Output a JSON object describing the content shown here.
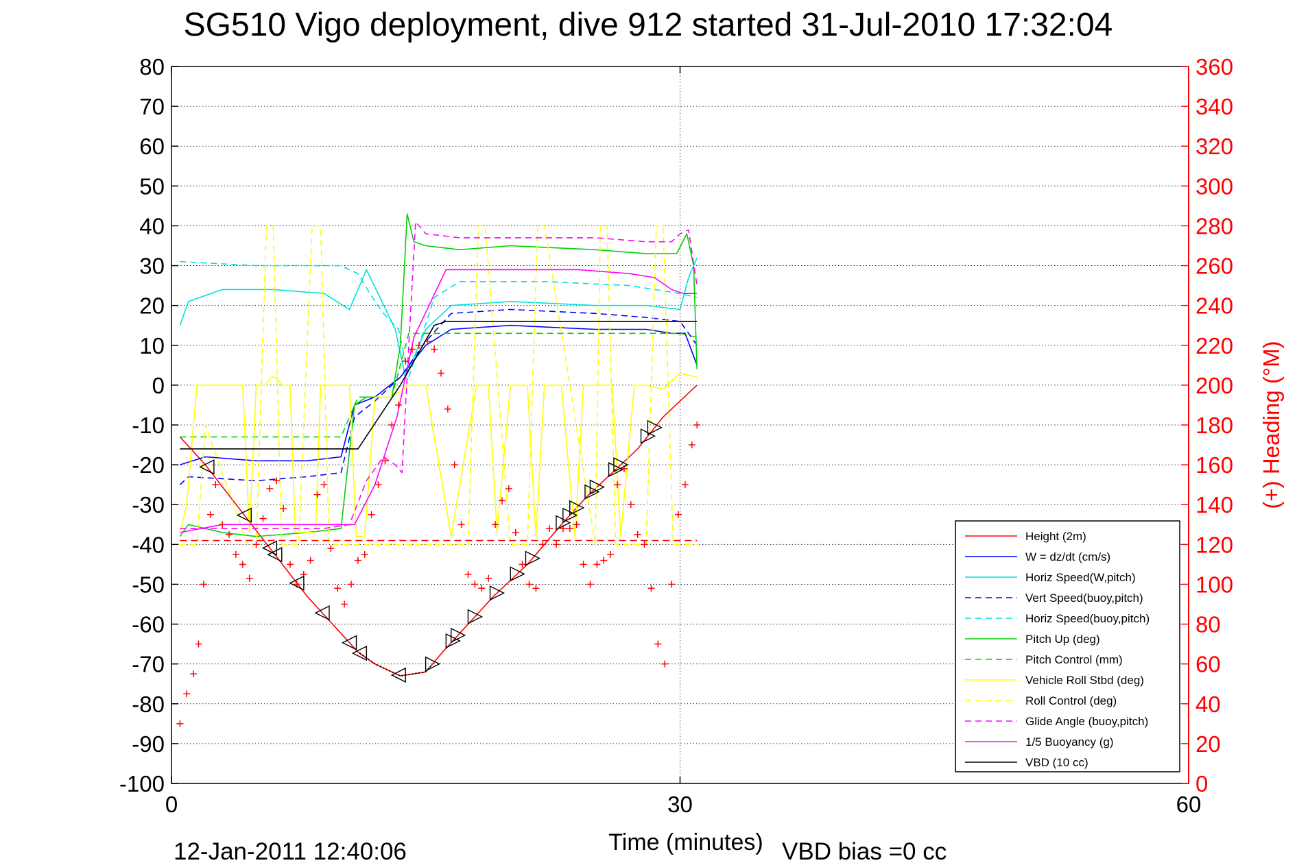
{
  "chart_data": {
    "type": "line",
    "title": "SG510 Vigo deployment, dive 912 started 31-Jul-2010 17:32:04",
    "xlabel": "Time (minutes)",
    "ylabel": "",
    "y2label": "(+) Heading (°M)",
    "xlim": [
      0,
      60
    ],
    "ylim": [
      -100,
      80
    ],
    "y2lim": [
      0,
      360
    ],
    "xticks": [
      "0",
      "30",
      "60"
    ],
    "yticks": [
      "80",
      "70",
      "60",
      "50",
      "40",
      "30",
      "20",
      "10",
      "0",
      "-10",
      "-20",
      "-30",
      "-40",
      "-50",
      "-60",
      "-70",
      "-80",
      "-90",
      "-100"
    ],
    "y2ticks": [
      "360",
      "340",
      "320",
      "300",
      "280",
      "260",
      "240",
      "220",
      "200",
      "180",
      "160",
      "140",
      "120",
      "100",
      "80",
      "60",
      "40",
      "20",
      "0"
    ],
    "grid": true,
    "legend_position": "bottom-right",
    "footer_left": "12-Jan-2011 12:40:06",
    "footer_right": "VBD bias =0 cc",
    "series": [
      {
        "name": "Height (2m)",
        "color": "#ff0000",
        "style": "solid",
        "x": [
          0.5,
          2,
          4,
          6,
          8,
          9.5,
          11,
          12,
          13.5,
          15,
          16,
          17.5,
          19,
          21,
          23,
          24.5,
          26,
          27.5,
          29,
          30,
          31
        ],
        "y": [
          -13,
          -20,
          -31,
          -42,
          -53,
          -60,
          -67,
          -70,
          -73,
          -72,
          -67,
          -60,
          -53,
          -45,
          -35,
          -28,
          -22,
          -16,
          -8,
          -4,
          0
        ]
      },
      {
        "name": "W = dz/dt (cm/s)",
        "color": "#0000ff",
        "style": "solid",
        "x": [
          0.5,
          2,
          5,
          8,
          10,
          10.8,
          12,
          13.5,
          15,
          16.5,
          20,
          25,
          28,
          29.5,
          30.3,
          31
        ],
        "y": [
          -20,
          -18,
          -19,
          -19,
          -18,
          -5,
          -3,
          2,
          10,
          14,
          15,
          14,
          14,
          13,
          13,
          5
        ]
      },
      {
        "name": "Horiz Speed(W,pitch)",
        "color": "#00e0e0",
        "style": "solid",
        "x": [
          0.5,
          1,
          3,
          6,
          9,
          10.5,
          11.5,
          12.3,
          13.2,
          13.8,
          15,
          16.5,
          20,
          25,
          28,
          30,
          30.5,
          31
        ],
        "y": [
          15,
          21,
          24,
          24,
          23,
          19,
          29,
          22,
          14,
          2,
          14,
          20,
          21,
          20,
          20,
          19,
          27,
          32
        ]
      },
      {
        "name": "Vert Speed(buoy,pitch)",
        "color": "#0000ff",
        "style": "dashed",
        "x": [
          0.5,
          1,
          5,
          8,
          10,
          10.8,
          12,
          13.5,
          15,
          16.5,
          20,
          25,
          28,
          30,
          31
        ],
        "y": [
          -25,
          -23,
          -24,
          -23,
          -22,
          -8,
          -4,
          2,
          11,
          18,
          19,
          18,
          17,
          16,
          10
        ]
      },
      {
        "name": "Horiz Speed(buoy,pitch)",
        "color": "#00e0e0",
        "style": "dashed",
        "x": [
          0.5,
          5,
          10,
          11,
          11.7,
          12.5,
          13.4,
          14,
          15.5,
          17,
          22,
          27,
          30,
          31
        ],
        "y": [
          31,
          30,
          30,
          28,
          23,
          18,
          14,
          2,
          22,
          26,
          26,
          25,
          23,
          22
        ]
      },
      {
        "name": "Pitch Up (deg)",
        "color": "#00d000",
        "style": "solid",
        "x": [
          0.5,
          1,
          3,
          5,
          8,
          10,
          10.8,
          11.5,
          13,
          13.5,
          13.9,
          14.3,
          15,
          17,
          20,
          25,
          28,
          29.8,
          30.4,
          30.8,
          31
        ],
        "y": [
          -38,
          -35,
          -37,
          -38,
          -37,
          -36,
          -5,
          -3,
          -3,
          10,
          43,
          36,
          35,
          34,
          35,
          34,
          33,
          33,
          38,
          30,
          4
        ]
      },
      {
        "name": "Pitch Control (mm)",
        "color": "#00d000",
        "style": "dashed",
        "x": [
          0.5,
          5,
          10,
          11,
          13,
          14,
          16,
          20,
          25,
          30,
          31
        ],
        "y": [
          -13,
          -13,
          -13,
          -3,
          -3,
          13,
          13,
          13,
          13,
          13,
          12
        ]
      },
      {
        "name": "Vehicle Roll Stbd (deg)",
        "color": "#ffff00",
        "style": "solid",
        "x": [
          0.5,
          0.9,
          1.5,
          3,
          4.2,
          4.6,
          5,
          5.5,
          5.9,
          6.2,
          6.5,
          7,
          7.3,
          8.5,
          8.8,
          9.3,
          10,
          10.5,
          10.9,
          11.4,
          12,
          13,
          14,
          15,
          15.5,
          16.5,
          18,
          18.7,
          19.2,
          20,
          21,
          21.5,
          22,
          23,
          23.8,
          24.3,
          25,
          26,
          26.5,
          27.3,
          28,
          29,
          30,
          31
        ],
        "y": [
          -37,
          -30,
          0,
          0,
          0,
          -37,
          0,
          0,
          2,
          2,
          0,
          0,
          -37,
          -37,
          0,
          0,
          0,
          0,
          -38,
          -38,
          -3,
          -3,
          0,
          0,
          -13,
          -38,
          0,
          0,
          -37,
          0,
          0,
          -38,
          0,
          0,
          -38,
          0,
          0,
          0,
          -38,
          0,
          0,
          -1,
          3,
          2
        ]
      },
      {
        "name": "Roll Control (deg)",
        "color": "#ffff00",
        "style": "dashed",
        "x": [
          0.5,
          1.5,
          2,
          4.5,
          5,
          5.6,
          6,
          6.5,
          7.5,
          8.3,
          8.8,
          9.3,
          9.7,
          10.5,
          11,
          13,
          14,
          16,
          17.5,
          18.1,
          18.5,
          20,
          21,
          21.6,
          22,
          25,
          25.3,
          25.7,
          26.2,
          28,
          28.6,
          29,
          29.6,
          30,
          30.5,
          31
        ],
        "y": [
          -40,
          -40,
          -10,
          -40,
          -40,
          40,
          40,
          -40,
          -40,
          40,
          40,
          -40,
          -40,
          -40,
          -40,
          -40,
          -40,
          -40,
          -40,
          40,
          40,
          -40,
          -40,
          40,
          40,
          -40,
          40,
          40,
          -40,
          -40,
          40,
          40,
          -40,
          -40,
          -40,
          -40
        ]
      },
      {
        "name": "Glide Angle (buoy,pitch)",
        "color": "#ff00ff",
        "style": "dashed",
        "x": [
          0.5,
          3,
          6,
          9,
          10.5,
          11.5,
          12.5,
          13.2,
          13.6,
          14,
          14.4,
          15,
          17,
          20,
          25,
          28,
          29.5,
          30,
          30.5,
          31
        ],
        "y": [
          -36,
          -36,
          -36,
          -36,
          -35,
          -24,
          -18,
          -20,
          -22,
          10,
          41,
          38,
          37,
          37,
          37,
          36,
          36,
          38,
          39,
          25
        ]
      },
      {
        "name": "1/5 Buoyancy (g)",
        "color": "#ff00ff",
        "style": "solid",
        "x": [
          0.5,
          3,
          6,
          9,
          10.8,
          12,
          13.3,
          14.3,
          16.2,
          20,
          24,
          27,
          28.5,
          29.5,
          30.2,
          31
        ],
        "y": [
          -37,
          -35,
          -35,
          -35,
          -35,
          -25,
          -8,
          12,
          29,
          29,
          29,
          28,
          27,
          24,
          23,
          23
        ]
      },
      {
        "name": "VBD (10 cc)",
        "color": "#000000",
        "style": "solid",
        "x": [
          0.5,
          5,
          10,
          11,
          13.5,
          15.5,
          16.2,
          20,
          25,
          30,
          31
        ],
        "y": [
          -16,
          -16,
          -16,
          -16,
          0,
          15,
          16,
          16,
          16,
          16,
          16
        ]
      }
    ],
    "heading": {
      "name": "Heading (+)",
      "color": "#ff0000",
      "axis": "right",
      "x": [
        0.5,
        0.9,
        1.3,
        1.6,
        1.9,
        2.3,
        2.6,
        3,
        3.4,
        3.8,
        4.2,
        4.6,
        5,
        5.4,
        5.8,
        6.2,
        6.6,
        7,
        7.4,
        7.8,
        8.2,
        8.6,
        9,
        9.4,
        9.8,
        10.2,
        10.6,
        11,
        11.4,
        11.8,
        12.2,
        12.6,
        13,
        13.4,
        13.8,
        14.2,
        14.6,
        15.1,
        15.5,
        15.9,
        16.3,
        16.7,
        17.1,
        17.5,
        17.9,
        18.3,
        18.7,
        19.1,
        19.5,
        19.9,
        20.3,
        20.7,
        21.1,
        21.5,
        21.9,
        22.3,
        22.7,
        23.1,
        23.5,
        23.9,
        24.3,
        24.7,
        25.1,
        25.5,
        25.9,
        26.3,
        26.7,
        27.1,
        27.5,
        27.9,
        28.3,
        28.7,
        29.1,
        29.5,
        29.9,
        30.3,
        30.7,
        31
      ],
      "y": [
        30,
        45,
        55,
        70,
        100,
        135,
        150,
        130,
        125,
        115,
        110,
        103,
        120,
        133,
        148,
        152,
        138,
        110,
        100,
        105,
        112,
        145,
        150,
        118,
        98,
        90,
        100,
        112,
        115,
        135,
        150,
        162,
        180,
        190,
        212,
        218,
        220,
        222,
        218,
        206,
        188,
        160,
        130,
        105,
        100,
        98,
        103,
        130,
        142,
        148,
        126,
        110,
        100,
        98,
        120,
        128,
        120,
        128,
        128,
        130,
        110,
        100,
        110,
        112,
        115,
        150,
        158,
        140,
        125,
        120,
        98,
        70,
        60,
        100,
        135,
        150,
        170,
        180
      ]
    },
    "dashed_reference": {
      "color": "#ff0000",
      "y": -39,
      "x": [
        0.5,
        31
      ]
    },
    "depth_markers": {
      "x": [
        2.1,
        4.3,
        5.8,
        6.1,
        7.4,
        8.9,
        10.5,
        11.1,
        13.4,
        15.4,
        16.6,
        16.9,
        17.9,
        19.2,
        20.4,
        21.3,
        23.1,
        23.5,
        23.9,
        24.8,
        25.1,
        26.2,
        26.5,
        28.1,
        28.5
      ]
    }
  }
}
